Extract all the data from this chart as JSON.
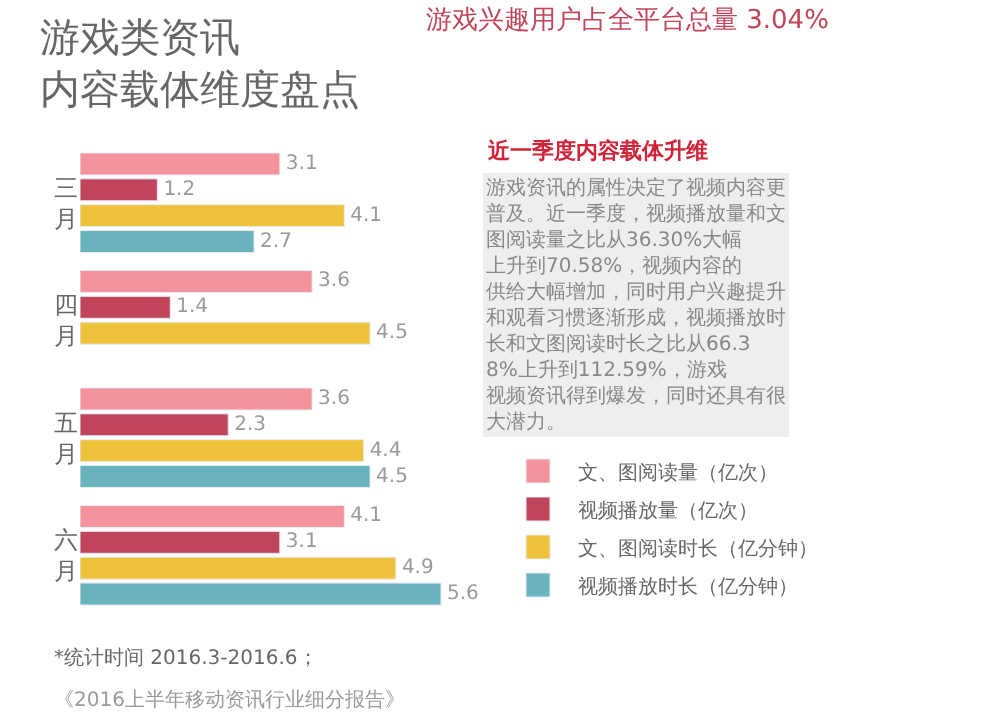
{
  "chart_data": {
    "type": "bar",
    "orientation": "horizontal",
    "title": "游戏类资讯内容载体维度盘点",
    "subtitle": "游戏兴趣用户占全平台总量 3.04%",
    "categories": [
      "三月",
      "四月",
      "五月",
      "六月"
    ],
    "series": [
      {
        "name": "文、图阅读量（亿次）",
        "color": "#f4939c",
        "values": [
          3.1,
          3.6,
          3.6,
          4.1
        ]
      },
      {
        "name": "视频播放量（亿次）",
        "color": "#c0455a",
        "values": [
          1.2,
          1.4,
          2.3,
          3.1
        ]
      },
      {
        "name": "文、图阅读时长（亿分钟）",
        "color": "#eec23a",
        "values": [
          4.1,
          4.5,
          4.4,
          4.9
        ]
      },
      {
        "name": "视频播放时长（亿分钟）",
        "color": "#6bb3bc",
        "values": [
          2.7,
          null,
          4.5,
          5.6
        ]
      }
    ],
    "data_labels": true,
    "tick_labels": "y",
    "legend": "bottom right",
    "annotations": [
      "近一季度内容载体升维",
      "游戏资讯的属性决定了视频内容更普及。近一季度，视频播放量和文图阅读量之比从36.30%大幅上升到70.58%，视频内容的供给大幅增加，同时用户兴趣提升和观看习惯逐渐形成，视频播放时长和文图阅读时长之比从66.38%上升到112.59%，游戏视频资讯得到爆发，同时还具有很大潜力。",
      "*统计时间 2016.3-2016.6；",
      "《2016上半年移动资讯行业细分报告》"
    ]
  }
}
